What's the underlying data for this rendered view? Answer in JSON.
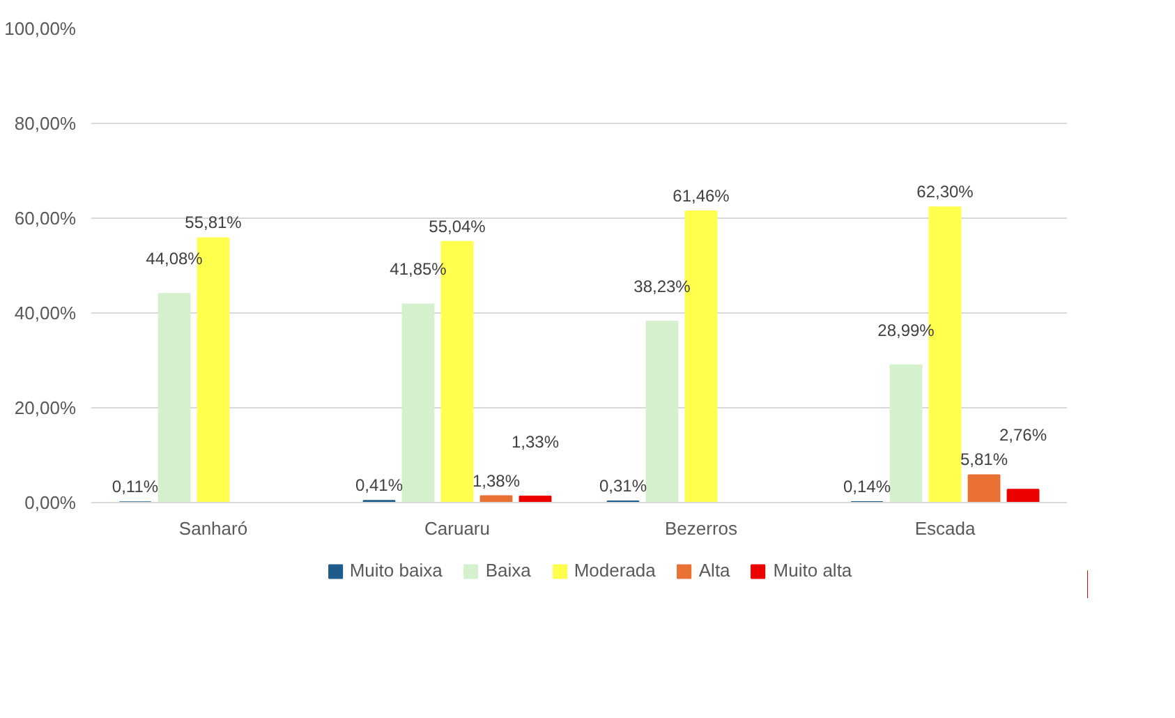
{
  "chart_data": {
    "type": "bar",
    "categories": [
      "Sanharó",
      "Caruaru",
      "Bezerros",
      "Escada"
    ],
    "series": [
      {
        "name": "Muito baixa",
        "color": "#1f5c8b",
        "values": [
          0.11,
          0.41,
          0.31,
          0.14
        ],
        "value_labels": [
          "0,11%",
          "0,41%",
          "0,31%",
          "0,14%"
        ]
      },
      {
        "name": "Baixa",
        "color": "#d4f0cc",
        "values": [
          44.08,
          41.85,
          38.23,
          28.99
        ],
        "value_labels": [
          "44,08%",
          "41,85%",
          "38,23%",
          "28,99%"
        ]
      },
      {
        "name": "Moderada",
        "color": "#ffff4d",
        "values": [
          55.81,
          55.04,
          61.46,
          62.3
        ],
        "value_labels": [
          "55,81%",
          "55,04%",
          "61,46%",
          "62,30%"
        ]
      },
      {
        "name": "Alta",
        "color": "#e97132",
        "values": [
          null,
          1.38,
          null,
          5.81
        ],
        "value_labels": [
          null,
          "1,38%",
          null,
          "5,81%"
        ]
      },
      {
        "name": "Muito alta",
        "color": "#ee0000",
        "values": [
          null,
          1.33,
          null,
          2.76
        ],
        "value_labels": [
          null,
          "1,33%",
          null,
          "2,76%"
        ]
      }
    ],
    "ylim": [
      0,
      100
    ],
    "yticks": [
      {
        "value": 0,
        "label": "0,00%"
      },
      {
        "value": 20,
        "label": "20,00%"
      },
      {
        "value": 40,
        "label": "40,00%"
      },
      {
        "value": 60,
        "label": "60,00%"
      },
      {
        "value": 80,
        "label": "80,00%"
      },
      {
        "value": 100,
        "label": "100,00%"
      }
    ],
    "grid": "y",
    "legend": "bottom"
  }
}
